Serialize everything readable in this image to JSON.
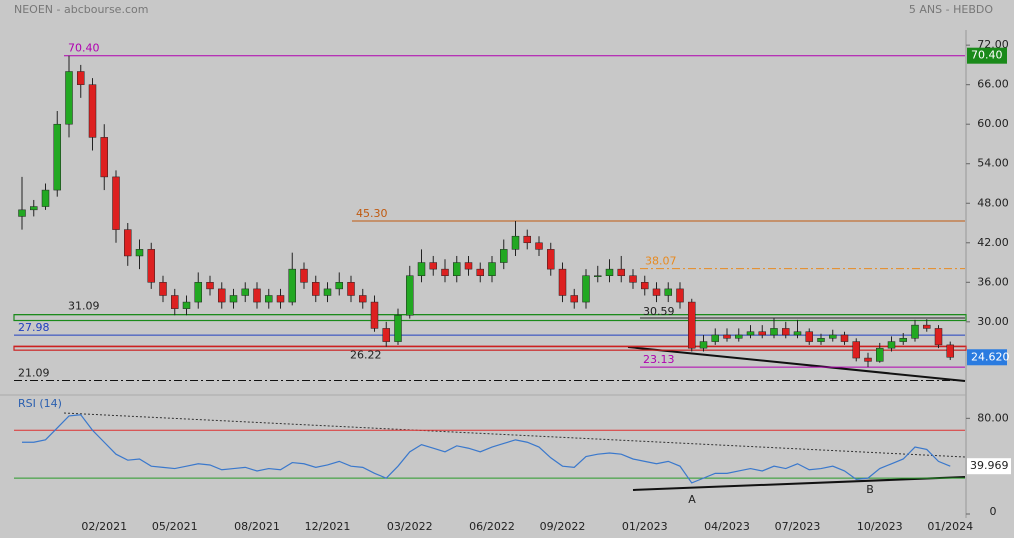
{
  "header": {
    "left": "NEOEN - abcbourse.com",
    "right": "5 ANS - HEBDO"
  },
  "chart_data": [
    {
      "type": "candlestick",
      "categories": [
        null,
        null,
        null,
        null,
        null,
        null,
        null,
        "02/2021",
        null,
        null,
        null,
        null,
        null,
        "05/2021",
        null,
        null,
        null,
        null,
        null,
        null,
        "08/2021",
        null,
        null,
        null,
        null,
        null,
        "12/2021",
        null,
        null,
        null,
        null,
        null,
        null,
        "03/2022",
        null,
        null,
        null,
        null,
        null,
        null,
        "06/2022",
        null,
        null,
        null,
        null,
        null,
        "09/2022",
        null,
        null,
        null,
        null,
        null,
        null,
        "01/2023",
        null,
        null,
        null,
        null,
        null,
        null,
        "04/2023",
        null,
        null,
        null,
        null,
        null,
        "07/2023",
        null,
        null,
        null,
        null,
        null,
        null,
        "10/2023",
        null,
        null,
        null,
        null,
        null,
        "01/2024"
      ],
      "open": [
        46,
        47,
        47.5,
        50,
        60,
        68,
        66,
        58,
        52,
        44,
        40,
        41,
        36,
        34,
        32,
        33,
        36,
        35,
        33,
        34,
        35,
        33,
        34,
        33,
        38,
        36,
        34,
        35,
        36,
        34,
        33,
        29,
        27,
        31,
        37,
        39,
        38,
        37,
        39,
        38,
        37,
        39,
        41,
        43,
        42,
        41,
        38,
        34,
        33,
        37,
        37,
        38,
        37,
        36,
        35,
        34,
        35,
        33,
        26,
        27,
        28,
        27.5,
        28,
        28.5,
        28,
        29,
        28,
        28.5,
        27,
        27.5,
        28,
        27,
        24.5,
        24,
        26,
        27,
        27.5,
        29.5,
        29,
        26.5
      ],
      "high": [
        52,
        48.5,
        51,
        62,
        70.4,
        69,
        67,
        60,
        53,
        45,
        42.5,
        42,
        37,
        35,
        34,
        37.5,
        37,
        36,
        35,
        36,
        36,
        35,
        35,
        40.5,
        39,
        37,
        36,
        37.5,
        37,
        35,
        34,
        30,
        32,
        38.5,
        41,
        40,
        39.5,
        40,
        40,
        39,
        40,
        42.5,
        45.3,
        44,
        43,
        42,
        39,
        35,
        38,
        38.5,
        39.5,
        40,
        38,
        37,
        36,
        36,
        36,
        33.5,
        28,
        29,
        29,
        29,
        29.5,
        29.5,
        30.5,
        30,
        30.3,
        29,
        28.2,
        28.8,
        28.5,
        27.5,
        25.3,
        26.8,
        27.8,
        28.3,
        30.3,
        30.4,
        29.5,
        27
      ],
      "low": [
        44,
        46,
        47,
        49,
        58,
        64,
        56,
        50,
        42,
        38.5,
        38,
        35,
        33,
        31,
        31,
        32,
        34,
        32,
        32,
        33,
        32,
        32,
        32,
        32.5,
        35,
        33,
        33,
        34,
        33,
        32,
        28.5,
        26.22,
        26.5,
        30.5,
        36,
        37,
        36,
        36,
        37,
        36,
        36,
        38,
        40,
        41,
        40,
        37,
        33,
        32,
        32,
        36,
        36,
        36,
        35,
        34,
        33,
        33,
        32,
        25.5,
        25.5,
        26.5,
        27,
        27,
        27.5,
        27.5,
        27.5,
        27.5,
        27.5,
        26.5,
        26.5,
        27,
        26.5,
        24,
        23.13,
        23.8,
        25.5,
        26.5,
        27,
        28.5,
        26,
        24.2
      ],
      "close": [
        47,
        47.5,
        50,
        60,
        68,
        66,
        58,
        52,
        44,
        40,
        41,
        36,
        34,
        32,
        33,
        36,
        35,
        33,
        34,
        35,
        33,
        34,
        33,
        38,
        36,
        34,
        35,
        36,
        34,
        33,
        29,
        27,
        31,
        37,
        39,
        38,
        37,
        39,
        38,
        37,
        39,
        41,
        43,
        42,
        41,
        38,
        34,
        33,
        37,
        37,
        38,
        37,
        36,
        35,
        34,
        35,
        33,
        26,
        27,
        28,
        27.5,
        28,
        28.5,
        28,
        29,
        28,
        28.5,
        27,
        27.5,
        28,
        27,
        24.5,
        24,
        26,
        27,
        27.5,
        29.5,
        29,
        26.5,
        24.62
      ],
      "up_color": "#22a822",
      "down_color": "#dd2020",
      "ylim": [
        19.5,
        74.3
      ],
      "yticks": [
        {
          "value": 72,
          "label": "72.00"
        },
        {
          "value": 66,
          "label": "66.00"
        },
        {
          "value": 60,
          "label": "60.00"
        },
        {
          "value": 54,
          "label": "54.00"
        },
        {
          "value": 48,
          "label": "48.00"
        },
        {
          "value": 42,
          "label": "42.00"
        },
        {
          "value": 36,
          "label": "36.00"
        },
        {
          "value": 30,
          "label": "30.00"
        }
      ],
      "levels": [
        {
          "value": 70.4,
          "label": "70.40",
          "color": "#b000b0",
          "style": "solid"
        },
        {
          "value": 45.3,
          "label": "45.30",
          "color": "#c05a10",
          "style": "solid"
        },
        {
          "value": 38.07,
          "label": "38.07",
          "color": "#e88a20",
          "style": "dashdot"
        },
        {
          "value": 31.09,
          "label": "31.09",
          "color": "#1a8a1a",
          "style": "solid"
        },
        {
          "value": 30.59,
          "label": "30.59",
          "color": "#222222",
          "style": "solid"
        },
        {
          "value": 27.98,
          "label": "27.98",
          "color": "#2040c0",
          "style": "solid"
        },
        {
          "value": 26.22,
          "label": "26.22",
          "color": "#cc2020",
          "style": "solid"
        },
        {
          "value": 23.13,
          "label": "23.13",
          "color": "#b000b0",
          "style": "solid"
        },
        {
          "value": 21.09,
          "label": "21.09",
          "color": "#111111",
          "style": "dashdot"
        }
      ],
      "zones": [
        {
          "from": 30.2,
          "to": 31.09,
          "color": "#1a8a1a"
        },
        {
          "from": 25.7,
          "to": 26.3,
          "color": "#cc2020"
        }
      ],
      "tags": [
        {
          "value": 70.4,
          "label": "70.40",
          "color": "#1a8a1a"
        },
        {
          "value": 24.62,
          "label": "24.620",
          "color": "#2a7be0"
        }
      ]
    },
    {
      "type": "line",
      "title": "RSI (14)",
      "color": "#3a78cc",
      "values": [
        60,
        60,
        62,
        72,
        82,
        83,
        70,
        60,
        50,
        45,
        46,
        40,
        39,
        38,
        40,
        42,
        41,
        37,
        38,
        39,
        36,
        38,
        37,
        43,
        42,
        39,
        41,
        44,
        40,
        39,
        34,
        30,
        40,
        52,
        58,
        55,
        52,
        57,
        55,
        52,
        56,
        59,
        62,
        60,
        56,
        47,
        40,
        39,
        48,
        50,
        51,
        50,
        46,
        44,
        42,
        44,
        40,
        26,
        30,
        34,
        34,
        36,
        38,
        36,
        40,
        38,
        42,
        37,
        38,
        40,
        36,
        29,
        30,
        38,
        42,
        46,
        56,
        54,
        44,
        39.969
      ],
      "last_label": "39.969",
      "ylim": [
        0,
        97
      ],
      "yticks": [
        {
          "value": 80,
          "label": "80.00"
        },
        0
      ],
      "hlines": [
        {
          "value": 70,
          "color": "#dd3030"
        },
        {
          "value": 30,
          "color": "#2a9a2a"
        }
      ],
      "annotations": [
        "A",
        "B"
      ]
    }
  ]
}
